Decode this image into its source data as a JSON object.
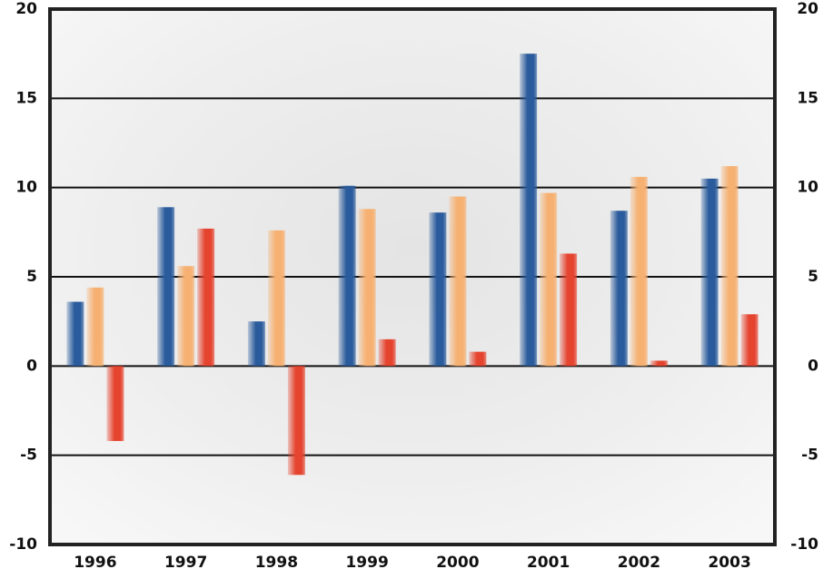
{
  "chart_data": {
    "type": "bar",
    "categories": [
      "1996",
      "1997",
      "1998",
      "1999",
      "2000",
      "2001",
      "2002",
      "2003"
    ],
    "series": [
      {
        "color": "#2a5b9c",
        "values": [
          3.6,
          8.9,
          2.5,
          10.1,
          8.6,
          17.5,
          8.7,
          10.5
        ]
      },
      {
        "color": "#f6b172",
        "values": [
          4.4,
          5.6,
          7.6,
          8.8,
          9.5,
          9.7,
          10.6,
          11.2
        ]
      },
      {
        "color": "#e5442f",
        "values": [
          -4.2,
          7.7,
          -6.1,
          1.5,
          0.8,
          6.3,
          0.3,
          2.9
        ]
      }
    ],
    "ylim": [
      -10,
      20
    ],
    "yticks": [
      -10,
      -5,
      0,
      5,
      10,
      15,
      20
    ],
    "y2lim": [
      -10,
      20
    ],
    "y2ticks": [
      -10,
      -5,
      0,
      5,
      10,
      15,
      20
    ],
    "grid": true
  }
}
